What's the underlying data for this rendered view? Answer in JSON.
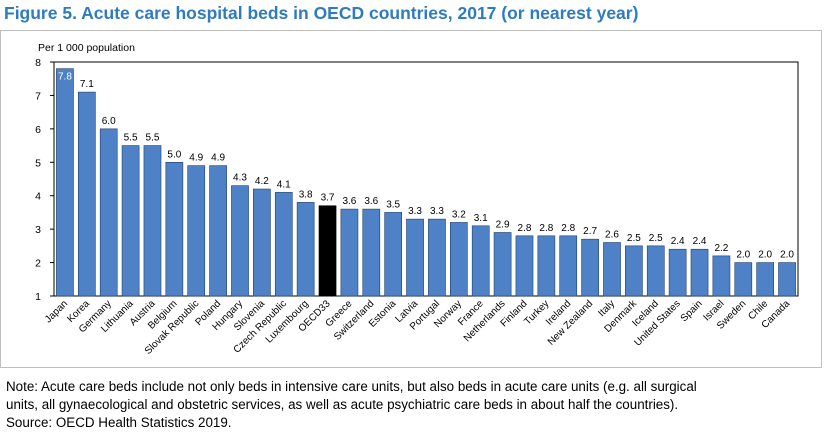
{
  "figure": {
    "title": "Figure 5. Acute care hospital beds in OECD countries, 2017 (or nearest year)",
    "note_lines": [
      "Note: Acute care beds include not only beds in intensive care units, but also beds in acute care units (e.g. all surgical",
      "units, all gynaecological and obstetric services, as well as acute psychiatric care beds in about half the countries).",
      "Source: OECD Health Statistics 2019."
    ]
  },
  "chart_data": {
    "type": "bar",
    "title": "Figure 5. Acute care hospital beds in OECD countries, 2017 (or nearest year)",
    "ylabel": "Per 1 000 population",
    "xlabel": "",
    "ylim": [
      1,
      8
    ],
    "yticks": [
      1,
      2,
      3,
      4,
      5,
      6,
      7,
      8
    ],
    "grid": false,
    "categories": [
      "Japan",
      "Korea",
      "Germany",
      "Lithuania",
      "Austria",
      "Belgium",
      "Slovak Republic",
      "Poland",
      "Hungary",
      "Slovenia",
      "Czech Republic",
      "Luxembourg",
      "OECD33",
      "Greece",
      "Switzerland",
      "Estonia",
      "Latvia",
      "Portugal",
      "Norway",
      "France",
      "Netherlands",
      "Finland",
      "Turkey",
      "Ireland",
      "New Zealand",
      "Italy",
      "Denmark",
      "Iceland",
      "United States",
      "Spain",
      "Israel",
      "Sweden",
      "Chile",
      "Canada"
    ],
    "values": [
      7.8,
      7.1,
      6.0,
      5.5,
      5.5,
      5.0,
      4.9,
      4.9,
      4.3,
      4.2,
      4.1,
      3.8,
      3.7,
      3.6,
      3.6,
      3.5,
      3.3,
      3.3,
      3.2,
      3.1,
      2.9,
      2.8,
      2.8,
      2.8,
      2.7,
      2.6,
      2.5,
      2.5,
      2.4,
      2.4,
      2.2,
      2.0,
      2.0,
      2.0
    ],
    "data_labels": [
      "7.8",
      "7.1",
      "6.0",
      "5.5",
      "5.5",
      "5.0",
      "4.9",
      "4.9",
      "4.3",
      "4.2",
      "4.1",
      "3.8",
      "3.7",
      "3.6",
      "3.6",
      "3.5",
      "3.3",
      "3.3",
      "3.2",
      "3.1",
      "2.9",
      "2.8",
      "2.8",
      "2.8",
      "2.7",
      "2.6",
      "2.5",
      "2.5",
      "2.4",
      "2.4",
      "2.2",
      "2.0",
      "2.0",
      "2.0"
    ],
    "highlight_category": "OECD33",
    "colors": {
      "bar": "#4f81c7",
      "bar_border": "#1f3f6e",
      "highlight": "#000000",
      "title": "#2f7bbf"
    }
  }
}
